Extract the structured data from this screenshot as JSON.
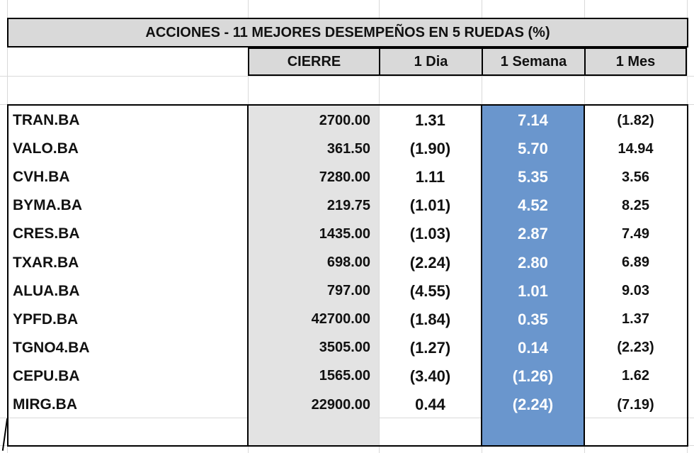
{
  "title": "ACCIONES   - 11  MEJORES DESEMPEÑOS EN 5 RUEDAS (%)",
  "headers": [
    "CIERRE",
    "1 Dia",
    "1 Semana",
    "1 Mes"
  ],
  "colors": {
    "header_bg": "#d9d9d9",
    "gray_column": "#e3e3e3",
    "highlight_column": "#6a96cd"
  },
  "rows": [
    {
      "ticker": "TRAN.BA",
      "cierre": "2700.00",
      "dia": "1.31",
      "semana": "7.14",
      "mes": "(1.82)"
    },
    {
      "ticker": "VALO.BA",
      "cierre": "361.50",
      "dia": "(1.90)",
      "semana": "5.70",
      "mes": "14.94"
    },
    {
      "ticker": "CVH.BA",
      "cierre": "7280.00",
      "dia": "1.11",
      "semana": "5.35",
      "mes": "3.56"
    },
    {
      "ticker": "BYMA.BA",
      "cierre": "219.75",
      "dia": "(1.01)",
      "semana": "4.52",
      "mes": "8.25"
    },
    {
      "ticker": "CRES.BA",
      "cierre": "1435.00",
      "dia": "(1.03)",
      "semana": "2.87",
      "mes": "7.49"
    },
    {
      "ticker": "TXAR.BA",
      "cierre": "698.00",
      "dia": "(2.24)",
      "semana": "2.80",
      "mes": "6.89"
    },
    {
      "ticker": "ALUA.BA",
      "cierre": "797.00",
      "dia": "(4.55)",
      "semana": "1.01",
      "mes": "9.03"
    },
    {
      "ticker": "YPFD.BA",
      "cierre": "42700.00",
      "dia": "(1.84)",
      "semana": "0.35",
      "mes": "1.37"
    },
    {
      "ticker": "TGNO4.BA",
      "cierre": "3505.00",
      "dia": "(1.27)",
      "semana": "0.14",
      "mes": "(2.23)"
    },
    {
      "ticker": "CEPU.BA",
      "cierre": "1565.00",
      "dia": "(3.40)",
      "semana": "(1.26)",
      "mes": "1.62"
    },
    {
      "ticker": "MIRG.BA",
      "cierre": "22900.00",
      "dia": "0.44",
      "semana": "(2.24)",
      "mes": "(7.19)"
    }
  ]
}
